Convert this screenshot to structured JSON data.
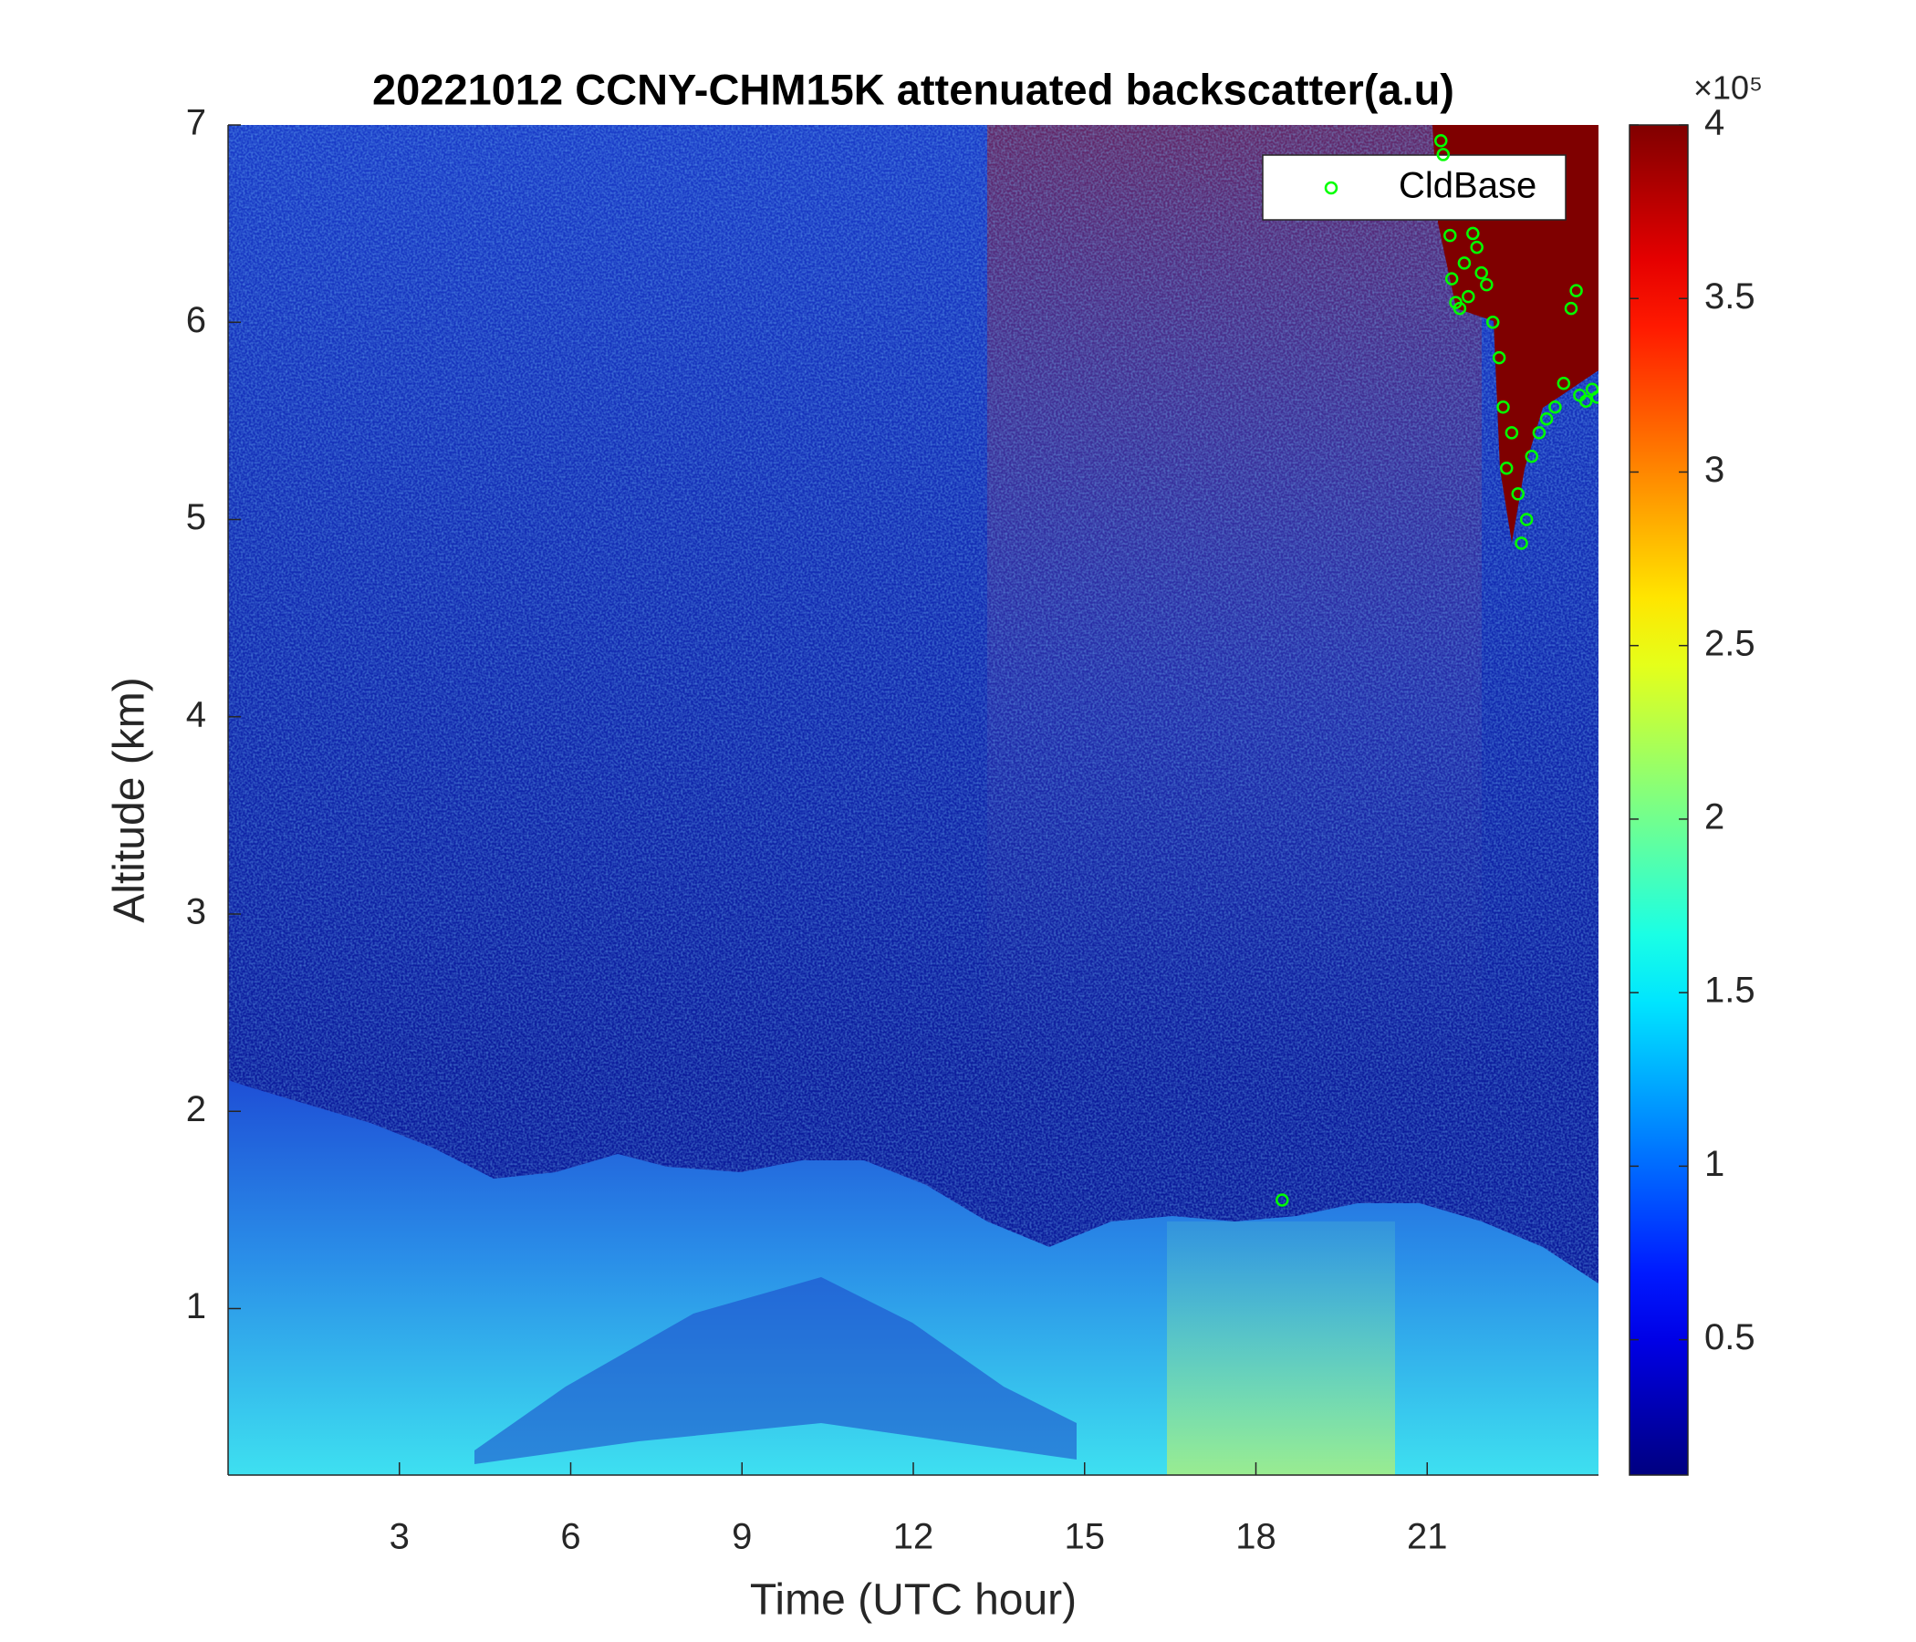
{
  "chart_data": {
    "type": "scatter",
    "title": "20221012 CCNY-CHM15K attenuated backscatter(a.u)",
    "xlabel": "Time (UTC hour)",
    "ylabel": "Altitude (km)",
    "xlim": [
      0,
      24
    ],
    "xticks": [
      3,
      6,
      9,
      12,
      15,
      18,
      21
    ],
    "ylim": [
      0.156,
      7
    ],
    "yticks": [
      1,
      2,
      3,
      4,
      5,
      6,
      7
    ],
    "legend": "northeast",
    "colorbar": {
      "colormap": "jet",
      "clim": [
        0.11,
        4
      ],
      "cticks": [
        0.5,
        1,
        1.5,
        2,
        2.5,
        3,
        3.5,
        4
      ],
      "multiplier": "×10⁵"
    },
    "series": [
      {
        "name": "CldBase",
        "color": "#00ff00",
        "x": [
          21.24,
          21.28,
          21.4,
          21.43,
          21.5,
          21.57,
          21.65,
          21.72,
          21.8,
          21.87,
          21.95,
          22.04,
          22.15,
          22.26,
          22.33,
          22.39,
          22.48,
          22.59,
          22.65,
          22.74,
          22.83,
          22.96,
          23.09,
          23.24,
          23.39,
          23.52,
          23.61,
          23.67,
          23.78,
          23.89,
          23.98,
          18.46
        ],
        "values": [
          6.92,
          6.85,
          6.44,
          6.22,
          6.1,
          6.07,
          6.3,
          6.13,
          6.45,
          6.38,
          6.25,
          6.19,
          6.0,
          5.82,
          5.57,
          5.26,
          5.44,
          5.13,
          4.88,
          5.0,
          5.32,
          5.44,
          5.51,
          5.57,
          5.69,
          6.07,
          6.16,
          5.63,
          5.6,
          5.66,
          5.62,
          1.55
        ]
      }
    ]
  }
}
